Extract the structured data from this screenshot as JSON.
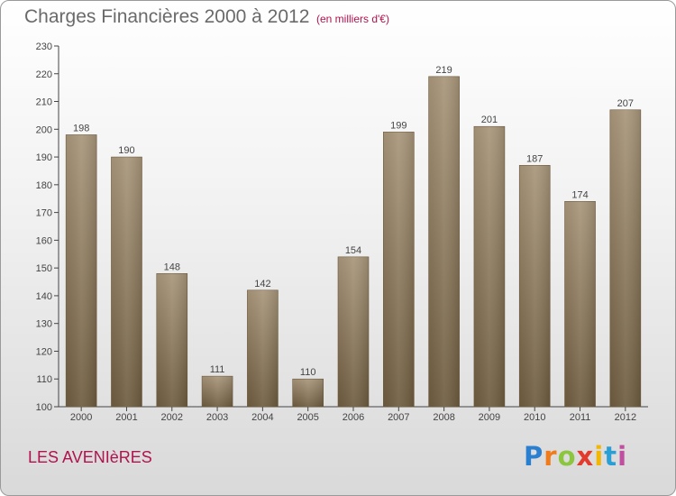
{
  "header": {
    "title": "Charges Financières 2000 à 2012",
    "subtitle": "(en milliers d'€)"
  },
  "footer": {
    "place": "LES AVENIèRES",
    "logo_letters": [
      {
        "char": "P",
        "color": "#2a7fd0"
      },
      {
        "char": "r",
        "color": "#f07b1a"
      },
      {
        "char": "o",
        "color": "#8cc63f"
      },
      {
        "char": "x",
        "color": "#e23a2c"
      },
      {
        "char": "i",
        "color": "#f2b705"
      },
      {
        "char": "t",
        "color": "#2a9fd6"
      },
      {
        "char": "i",
        "color": "#c04fa0"
      }
    ]
  },
  "chart_data": {
    "type": "bar",
    "categories": [
      "2000",
      "2001",
      "2002",
      "2003",
      "2004",
      "2005",
      "2006",
      "2007",
      "2008",
      "2009",
      "2010",
      "2011",
      "2012"
    ],
    "values": [
      198,
      190,
      148,
      111,
      142,
      110,
      154,
      199,
      219,
      201,
      187,
      174,
      207
    ],
    "ylim": [
      100,
      230
    ],
    "yticks": [
      100,
      110,
      120,
      130,
      140,
      150,
      160,
      170,
      180,
      190,
      200,
      210,
      220,
      230
    ],
    "xlabel": "",
    "ylabel": "",
    "grid": false,
    "bar_color": "#8c7b5e",
    "label_color": "#444444",
    "axis_color": "#444444"
  }
}
